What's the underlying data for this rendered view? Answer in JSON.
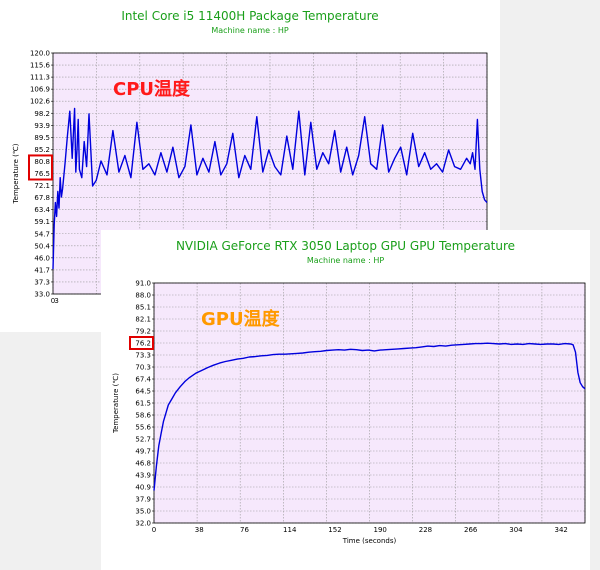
{
  "chart_data": [
    {
      "type": "line",
      "title": "Intel Core i5 11400H Package Temperature",
      "subtitle": "Machine name : HP",
      "ylabel": "Temperature (℃)",
      "xlabel": "",
      "annotation": "CPU温度",
      "annotation_color": "#ff1a1a",
      "line_color": "#0000dd",
      "plot_bg": "#f6e8fc",
      "grid": true,
      "ylim": [
        33.0,
        120.0
      ],
      "xlim": [
        0,
        362
      ],
      "y_ticks": [
        "120.0",
        "115.6",
        "111.3",
        "106.9",
        "102.6",
        "98.2",
        "93.9",
        "89.5",
        "85.2",
        "80.8",
        "76.5",
        "72.1",
        "67.8",
        "63.4",
        "59.1",
        "54.7",
        "50.4",
        "46.0",
        "41.7",
        "37.3",
        "33.0"
      ],
      "x_ticks": [
        "0",
        "3"
      ],
      "highlight_ticks": [
        "80.8",
        "76.5"
      ],
      "x": [
        0,
        1,
        2,
        3,
        4,
        5,
        6,
        7,
        8,
        10,
        12,
        14,
        16,
        18,
        19,
        20,
        21,
        22,
        24,
        26,
        28,
        30,
        33,
        36,
        40,
        45,
        50,
        55,
        60,
        65,
        70,
        75,
        80,
        85,
        90,
        95,
        100,
        105,
        110,
        115,
        120,
        125,
        130,
        135,
        140,
        145,
        150,
        155,
        160,
        165,
        170,
        175,
        180,
        185,
        190,
        195,
        200,
        205,
        210,
        215,
        220,
        225,
        230,
        235,
        240,
        245,
        250,
        255,
        260,
        265,
        270,
        275,
        280,
        285,
        290,
        295,
        300,
        305,
        310,
        315,
        320,
        325,
        330,
        335,
        340,
        345,
        348,
        350,
        352,
        354,
        356,
        358,
        360,
        362
      ],
      "y": [
        42,
        58,
        66,
        61,
        70,
        64,
        75,
        68,
        71,
        80,
        90,
        99,
        82,
        100,
        77,
        85,
        96,
        78,
        75,
        88,
        79,
        98,
        72,
        74,
        81,
        76,
        92,
        77,
        83,
        75,
        95,
        78,
        80,
        76,
        84,
        77,
        86,
        75,
        79,
        94,
        76,
        82,
        77,
        88,
        76,
        80,
        91,
        75,
        83,
        78,
        97,
        77,
        85,
        79,
        76,
        90,
        78,
        99,
        76,
        95,
        78,
        84,
        80,
        92,
        77,
        86,
        76,
        83,
        97,
        80,
        78,
        94,
        77,
        82,
        86,
        76,
        91,
        79,
        84,
        78,
        80,
        77,
        85,
        79,
        78,
        82,
        80,
        84,
        78,
        96,
        78,
        70,
        67,
        66
      ]
    },
    {
      "type": "line",
      "title": "NVIDIA GeForce RTX 3050 Laptop GPU GPU Temperature",
      "subtitle": "Machine name : HP",
      "ylabel": "Temperature (℃)",
      "xlabel": "Time (seconds)",
      "annotation": "GPU温度",
      "annotation_color": "#ff9900",
      "line_color": "#0000dd",
      "plot_bg": "#f6e8fc",
      "grid": true,
      "ylim": [
        32.0,
        91.0
      ],
      "xlim": [
        0,
        362
      ],
      "y_ticks": [
        "91.0",
        "88.0",
        "85.1",
        "82.1",
        "79.2",
        "76.2",
        "73.3",
        "70.3",
        "67.4",
        "64.5",
        "61.5",
        "58.6",
        "55.6",
        "52.7",
        "49.7",
        "46.8",
        "43.9",
        "40.9",
        "37.9",
        "35.0",
        "32.0"
      ],
      "x_ticks": [
        "0",
        "38",
        "76",
        "114",
        "152",
        "190",
        "228",
        "266",
        "304",
        "342"
      ],
      "highlight_ticks": [
        "76.2"
      ],
      "x": [
        0,
        2,
        4,
        6,
        8,
        10,
        12,
        15,
        18,
        22,
        26,
        30,
        35,
        40,
        45,
        50,
        55,
        60,
        65,
        70,
        75,
        80,
        85,
        90,
        95,
        100,
        105,
        110,
        115,
        120,
        125,
        130,
        135,
        140,
        145,
        150,
        155,
        160,
        165,
        170,
        175,
        180,
        185,
        190,
        195,
        200,
        205,
        210,
        215,
        220,
        225,
        230,
        235,
        240,
        245,
        250,
        255,
        260,
        265,
        270,
        275,
        280,
        285,
        290,
        295,
        300,
        305,
        310,
        315,
        320,
        325,
        330,
        335,
        340,
        345,
        350,
        352,
        354,
        356,
        358,
        360,
        362
      ],
      "y": [
        40,
        46,
        51,
        54,
        57,
        59,
        61,
        62.5,
        64,
        65.5,
        66.8,
        67.8,
        68.8,
        69.5,
        70.2,
        70.8,
        71.3,
        71.7,
        72,
        72.3,
        72.5,
        72.8,
        72.9,
        73.1,
        73.2,
        73.4,
        73.5,
        73.5,
        73.6,
        73.7,
        73.8,
        74,
        74.1,
        74.2,
        74.4,
        74.5,
        74.6,
        74.5,
        74.7,
        74.6,
        74.4,
        74.5,
        74.3,
        74.5,
        74.6,
        74.7,
        74.8,
        74.9,
        75,
        75.1,
        75.3,
        75.5,
        75.4,
        75.6,
        75.5,
        75.7,
        75.8,
        75.9,
        76,
        76.1,
        76.1,
        76.2,
        76.1,
        76,
        76.1,
        75.9,
        76,
        75.9,
        76.1,
        76,
        75.9,
        76,
        76,
        75.9,
        76.1,
        76,
        75.8,
        74,
        69,
        66.5,
        65.5,
        65
      ]
    }
  ]
}
